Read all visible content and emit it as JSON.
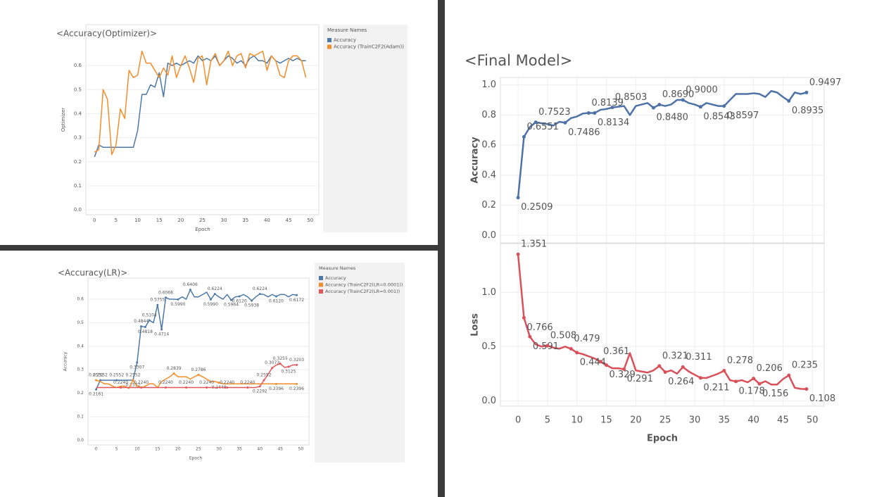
{
  "chart_data": [
    {
      "type": "line",
      "title": "<Accuracy(Optimizer)>",
      "xlabel": "Epoch",
      "legend_title": "Measure Names",
      "grid": true,
      "x": [
        0,
        1,
        2,
        3,
        4,
        5,
        6,
        7,
        8,
        9,
        10,
        11,
        12,
        13,
        14,
        15,
        16,
        17,
        18,
        19,
        20,
        21,
        22,
        23,
        24,
        25,
        26,
        27,
        28,
        29,
        30,
        31,
        32,
        33,
        34,
        35,
        36,
        37,
        38,
        39,
        40,
        41,
        42,
        43,
        44,
        45,
        46,
        47,
        48,
        49
      ],
      "xlim": [
        -2,
        52
      ],
      "xticks": [
        0,
        5,
        10,
        15,
        20,
        25,
        30,
        35,
        40,
        45,
        50
      ],
      "panes": [
        {
          "ylabel": "Optimizer",
          "ylim": [
            -0.02,
            0.77
          ],
          "yticks": [
            {
              "value": 0,
              "label": "0.0"
            },
            0.1,
            0.2,
            0.3,
            0.4,
            0.5,
            0.6
          ],
          "series": [
            {
              "name": "Accuracy",
              "color": "#4e79a7",
              "values": [
                0.22,
                0.27,
                0.26,
                0.26,
                0.26,
                0.26,
                0.26,
                0.26,
                0.26,
                0.26,
                0.33,
                0.48,
                0.48,
                0.52,
                0.51,
                0.57,
                0.47,
                0.61,
                0.6,
                0.61,
                0.6,
                0.61,
                0.62,
                0.61,
                0.64,
                0.62,
                0.63,
                0.62,
                0.64,
                0.6,
                0.62,
                0.64,
                0.63,
                0.61,
                0.62,
                0.6,
                0.63,
                0.64,
                0.62,
                0.62,
                0.61,
                0.64,
                0.62,
                0.61,
                0.62,
                0.63,
                0.62,
                0.63,
                0.62,
                0.62
              ]
            },
            {
              "name": "Accuracy (TrainC2F2(Adam))",
              "color": "#f28e2b",
              "values": [
                0.24,
                0.25,
                0.5,
                0.46,
                0.23,
                0.27,
                0.42,
                0.38,
                0.58,
                0.55,
                0.56,
                0.66,
                0.61,
                0.61,
                0.58,
                0.55,
                0.59,
                0.56,
                0.64,
                0.55,
                0.6,
                0.64,
                0.59,
                0.53,
                0.63,
                0.64,
                0.52,
                0.62,
                0.65,
                0.6,
                0.62,
                0.66,
                0.6,
                0.64,
                0.65,
                0.59,
                0.65,
                0.64,
                0.65,
                0.66,
                0.58,
                0.64,
                0.62,
                0.56,
                0.55,
                0.62,
                0.64,
                0.64,
                0.62,
                0.55
              ]
            }
          ]
        }
      ]
    },
    {
      "type": "line",
      "title": "<Accuracy(LR)>",
      "xlabel": "Epoch",
      "legend_title": "Measure Names",
      "grid": true,
      "x": [
        0,
        1,
        2,
        3,
        4,
        5,
        6,
        7,
        8,
        9,
        10,
        11,
        12,
        13,
        14,
        15,
        16,
        17,
        18,
        19,
        20,
        21,
        22,
        23,
        24,
        25,
        26,
        27,
        28,
        29,
        30,
        31,
        32,
        33,
        34,
        35,
        36,
        37,
        38,
        39,
        40,
        41,
        42,
        43,
        44,
        45,
        46,
        47,
        48,
        49
      ],
      "xlim": [
        -2,
        52
      ],
      "xticks": [
        0,
        5,
        10,
        15,
        20,
        25,
        30,
        35,
        40,
        45,
        50
      ],
      "panes": [
        {
          "ylabel": "Accuracy",
          "ylim": [
            -0.02,
            0.69
          ],
          "yticks": [
            {
              "value": 0,
              "label": "0.0"
            },
            0.1,
            0.2,
            0.3,
            0.4,
            0.5,
            0.6
          ],
          "series": [
            {
              "name": "Accuracy",
              "color": "#4e79a7",
              "values": [
                0.2161,
                0.2552,
                0.2552,
                0.2552,
                0.2552,
                0.2552,
                0.2552,
                0.2552,
                0.2552,
                0.2552,
                0.3307,
                0.4844,
                0.4818,
                0.5104,
                0.5,
                0.5755,
                0.4714,
                0.6068,
                0.6,
                0.6,
                0.599,
                0.61,
                0.6,
                0.6406,
                0.61,
                0.61,
                0.62,
                0.63,
                0.599,
                0.6224,
                0.61,
                0.6,
                0.62,
                0.5964,
                0.61,
                0.612,
                0.62,
                0.61,
                0.5938,
                0.61,
                0.6224,
                0.62,
                0.61,
                0.62,
                0.612,
                0.62,
                0.62,
                0.61,
                0.62,
                0.6172
              ],
              "value_labels": [
                "0.2161",
                "0.2552",
                null,
                null,
                null,
                "0.2552",
                null,
                null,
                null,
                "0.2552",
                "0.3307",
                "0.4844",
                "0.4818",
                "0.5104",
                null,
                "0.5755",
                "0.4714",
                "0.6068",
                null,
                null,
                "0.5990",
                null,
                null,
                "0.6406",
                null,
                null,
                null,
                null,
                "0.5990",
                "0.6224",
                null,
                null,
                null,
                "0.5964",
                null,
                "0.6120",
                null,
                null,
                "0.5938",
                null,
                "0.6224",
                null,
                null,
                null,
                "0.6120",
                null,
                null,
                null,
                null,
                "0.6172"
              ]
            },
            {
              "name": "Accuracy (TrainC2F2(LR=0.0001))",
              "color": "#f28e2b",
              "values": [
                0.2552,
                0.25,
                0.24,
                0.24,
                0.23,
                0.224,
                0.23,
                0.23,
                0.22,
                0.2552,
                0.23,
                0.224,
                0.23,
                0.24,
                0.24,
                0.224,
                0.25,
                0.26,
                0.27,
                0.2839,
                0.27,
                0.27,
                0.27,
                0.26,
                0.27,
                0.2786,
                0.27,
                0.26,
                0.25,
                0.25,
                0.2448,
                0.24,
                0.24,
                0.24,
                0.24,
                0.24,
                0.24,
                0.24,
                0.24,
                0.24,
                0.24,
                0.24,
                0.24,
                0.24,
                0.2396,
                0.24,
                0.24,
                0.24,
                0.24,
                0.2396
              ],
              "value_labels": [
                "0.2552",
                null,
                null,
                null,
                null,
                null,
                null,
                null,
                null,
                "0.2552",
                null,
                null,
                null,
                null,
                null,
                null,
                null,
                null,
                null,
                "0.2839",
                null,
                null,
                null,
                null,
                null,
                "0.2786",
                null,
                null,
                null,
                null,
                "0.2448",
                null,
                null,
                null,
                null,
                null,
                null,
                null,
                null,
                null,
                null,
                null,
                null,
                null,
                "0.2396",
                null,
                null,
                null,
                null,
                "0.2396"
              ]
            },
            {
              "name": "Accuracy (TrainC2F2(LR=0.001))",
              "color": "#e15759",
              "values": [
                0.224,
                0.224,
                0.224,
                0.224,
                0.224,
                0.224,
                0.224,
                0.224,
                0.224,
                0.224,
                0.224,
                0.224,
                0.224,
                0.224,
                0.224,
                0.224,
                0.224,
                0.224,
                0.224,
                0.224,
                0.224,
                0.224,
                0.224,
                0.224,
                0.224,
                0.224,
                0.224,
                0.224,
                0.224,
                0.224,
                0.224,
                0.224,
                0.224,
                0.224,
                0.224,
                0.224,
                0.224,
                0.224,
                0.224,
                0.224,
                0.2292,
                0.2552,
                0.28,
                0.3073,
                0.32,
                0.3255,
                0.31,
                0.3125,
                0.32,
                0.3203
              ],
              "value_labels": [
                null,
                null,
                null,
                null,
                null,
                null,
                "0.2240",
                null,
                null,
                null,
                null,
                "0.2240",
                null,
                null,
                null,
                null,
                null,
                "0.2240",
                null,
                null,
                null,
                null,
                "0.2240",
                null,
                null,
                null,
                null,
                "0.2240",
                null,
                null,
                null,
                null,
                "0.2240",
                null,
                null,
                null,
                null,
                "0.2240",
                null,
                null,
                "0.2292",
                "0.2552",
                null,
                "0.3073",
                null,
                "0.3255",
                null,
                "0.3125",
                null,
                "0.3203"
              ]
            }
          ]
        }
      ]
    },
    {
      "type": "line",
      "title": "<Final Model>",
      "xlabel": "Epoch",
      "grid": true,
      "x": [
        0,
        1,
        2,
        3,
        4,
        5,
        6,
        7,
        8,
        9,
        10,
        11,
        12,
        13,
        14,
        15,
        16,
        17,
        18,
        19,
        20,
        21,
        22,
        23,
        24,
        25,
        26,
        27,
        28,
        29,
        30,
        31,
        32,
        33,
        34,
        35,
        36,
        37,
        38,
        39,
        40,
        41,
        42,
        43,
        44,
        45,
        46,
        47,
        48,
        49
      ],
      "xlim": [
        -3,
        52
      ],
      "xticks": [
        0,
        5,
        10,
        15,
        20,
        25,
        30,
        35,
        40,
        45,
        50
      ],
      "panes": [
        {
          "ylabel": "Accuracy",
          "ylim": [
            -0.05,
            1.05
          ],
          "yticks": [
            {
              "value": 0,
              "label": "0.0"
            },
            0.2,
            0.4,
            0.6,
            0.8,
            {
              "value": 1,
              "label": "1.0"
            }
          ],
          "series": [
            {
              "color": "#4e72a8",
              "values": [
                0.2509,
                0.6551,
                0.72,
                0.7523,
                0.745,
                0.74,
                0.73,
                0.755,
                0.7486,
                0.78,
                0.79,
                0.81,
                0.8139,
                0.8134,
                0.835,
                0.84,
                0.8503,
                0.855,
                0.86,
                0.8,
                0.86,
                0.87,
                0.88,
                0.848,
                0.869,
                0.86,
                0.87,
                0.9,
                0.9,
                0.88,
                0.87,
                0.8543,
                0.88,
                0.87,
                0.86,
                0.8597,
                0.9,
                0.94,
                0.94,
                0.94,
                0.945,
                0.94,
                0.92,
                0.96,
                0.95,
                0.92,
                0.8935,
                0.95,
                0.94,
                0.9497
              ],
              "value_labels": [
                "0.2509",
                "0.6551",
                null,
                "0.7523",
                null,
                null,
                null,
                null,
                "0.7486",
                null,
                null,
                null,
                "0.8139",
                "0.8134",
                null,
                null,
                "0.8503",
                null,
                null,
                null,
                null,
                null,
                null,
                "0.8480",
                "0.8690",
                null,
                null,
                null,
                "0.9000",
                null,
                null,
                "0.8543",
                null,
                null,
                null,
                "0.8597",
                null,
                null,
                null,
                null,
                null,
                null,
                null,
                null,
                null,
                null,
                "0.8935",
                null,
                null,
                "0.9497"
              ]
            }
          ]
        },
        {
          "ylabel": "Loss",
          "ylim": [
            -0.05,
            1.45
          ],
          "yticks": [
            {
              "value": 0,
              "label": "0.0"
            },
            0.5,
            {
              "value": 1,
              "label": "1.0"
            }
          ],
          "series": [
            {
              "color": "#d9505a",
              "values": [
                1.351,
                0.766,
                0.591,
                0.52,
                0.5,
                0.508,
                0.49,
                0.48,
                0.5,
                0.479,
                0.444,
                0.43,
                0.41,
                0.39,
                0.361,
                0.329,
                0.3,
                0.3,
                0.291,
                0.44,
                0.28,
                0.27,
                0.26,
                0.28,
                0.321,
                0.264,
                0.28,
                0.25,
                0.311,
                0.27,
                0.24,
                0.211,
                0.21,
                0.23,
                0.25,
                0.278,
                0.19,
                0.178,
                0.19,
                0.17,
                0.206,
                0.156,
                0.18,
                0.15,
                0.15,
                0.2,
                0.235,
                0.12,
                0.11,
                0.108
              ],
              "value_labels": [
                "1.351",
                "0.766",
                "0.591",
                null,
                null,
                "0.508",
                null,
                null,
                null,
                "0.479",
                "0.444",
                null,
                null,
                null,
                "0.361",
                "0.329",
                null,
                null,
                "0.291",
                null,
                null,
                null,
                null,
                null,
                "0.321",
                "0.264",
                null,
                null,
                "0.311",
                null,
                null,
                "0.211",
                null,
                null,
                null,
                "0.278",
                null,
                "0.178",
                null,
                null,
                "0.206",
                "0.156",
                null,
                null,
                null,
                null,
                "0.235",
                null,
                null,
                "0.108"
              ]
            }
          ]
        }
      ]
    }
  ]
}
